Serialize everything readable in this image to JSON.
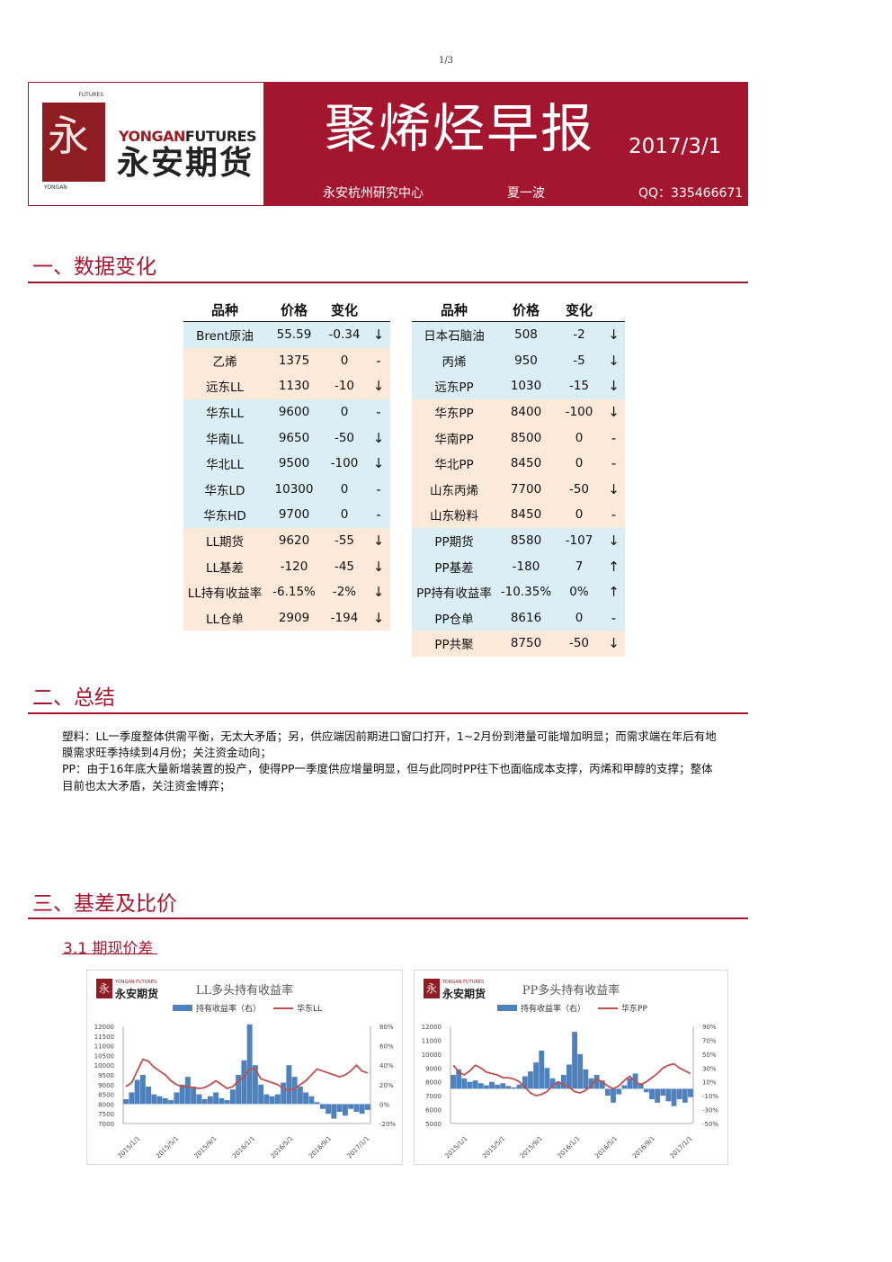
{
  "page_number": "1/3",
  "header": {
    "logo_en_a": "YONGAN",
    "logo_en_b": "FUTURES",
    "logo_cn": "永安期货",
    "logo_seal": "永",
    "logo_seal_top": "FUTURES",
    "logo_seal_bottom": "YONGAN",
    "title": "聚烯烃早报",
    "date": "2017/3/1",
    "org": "永安杭州研究中心",
    "author": "夏一波",
    "qq": "QQ：335466671"
  },
  "sections": {
    "s1": "一、数据变化",
    "s2": "二、总结",
    "s3": "三、基差及比价",
    "s3_1": "3.1 期现价差"
  },
  "table_headers": [
    "品种",
    "价格",
    "变化"
  ],
  "left_table": [
    {
      "name": "Brent原油",
      "price": "55.59",
      "change": "-0.34",
      "arrow": "↓",
      "bg": "blue"
    },
    {
      "name": "乙烯",
      "price": "1375",
      "change": "0",
      "arrow": "-",
      "bg": "orange"
    },
    {
      "name": "远东LL",
      "price": "1130",
      "change": "-10",
      "arrow": "↓",
      "bg": "orange"
    },
    {
      "name": "华东LL",
      "price": "9600",
      "change": "0",
      "arrow": "-",
      "bg": "blue"
    },
    {
      "name": "华南LL",
      "price": "9650",
      "change": "-50",
      "arrow": "↓",
      "bg": "blue"
    },
    {
      "name": "华北LL",
      "price": "9500",
      "change": "-100",
      "arrow": "↓",
      "bg": "blue"
    },
    {
      "name": "华东LD",
      "price": "10300",
      "change": "0",
      "arrow": "-",
      "bg": "blue"
    },
    {
      "name": "华东HD",
      "price": "9700",
      "change": "0",
      "arrow": "-",
      "bg": "blue"
    },
    {
      "name": "LL期货",
      "price": "9620",
      "change": "-55",
      "arrow": "↓",
      "bg": "orange"
    },
    {
      "name": "LL基差",
      "price": "-120",
      "change": "-45",
      "arrow": "↓",
      "bg": "orange"
    },
    {
      "name": "LL持有收益率",
      "price": "-6.15%",
      "change": "-2%",
      "arrow": "↓",
      "bg": "orange"
    },
    {
      "name": "LL仓单",
      "price": "2909",
      "change": "-194",
      "arrow": "↓",
      "bg": "orange"
    }
  ],
  "right_table": [
    {
      "name": "日本石脑油",
      "price": "508",
      "change": "-2",
      "arrow": "↓",
      "bg": "blue"
    },
    {
      "name": "丙烯",
      "price": "950",
      "change": "-5",
      "arrow": "↓",
      "bg": "blue"
    },
    {
      "name": "远东PP",
      "price": "1030",
      "change": "-15",
      "arrow": "↓",
      "bg": "blue"
    },
    {
      "name": "华东PP",
      "price": "8400",
      "change": "-100",
      "arrow": "↓",
      "bg": "orange"
    },
    {
      "name": "华南PP",
      "price": "8500",
      "change": "0",
      "arrow": "-",
      "bg": "orange"
    },
    {
      "name": "华北PP",
      "price": "8450",
      "change": "0",
      "arrow": "-",
      "bg": "orange"
    },
    {
      "name": "山东丙烯",
      "price": "7700",
      "change": "-50",
      "arrow": "↓",
      "bg": "orange"
    },
    {
      "name": "山东粉料",
      "price": "8450",
      "change": "0",
      "arrow": "-",
      "bg": "orange"
    },
    {
      "name": "PP期货",
      "price": "8580",
      "change": "-107",
      "arrow": "↓",
      "bg": "blue"
    },
    {
      "name": "PP基差",
      "price": "-180",
      "change": "7",
      "arrow": "↑",
      "bg": "blue"
    },
    {
      "name": "PP持有收益率",
      "price": "-10.35%",
      "change": "0%",
      "arrow": "↑",
      "bg": "blue"
    },
    {
      "name": "PP仓单",
      "price": "8616",
      "change": "0",
      "arrow": "-",
      "bg": "blue"
    },
    {
      "name": "PP共聚",
      "price": "8750",
      "change": "-50",
      "arrow": "↓",
      "bg": "orange"
    }
  ],
  "summary": {
    "p1": "塑料：LL一季度整体供需平衡，无太大矛盾；另，供应端因前期进口窗口打开，1~2月份到港量可能增加明显；而需求端在年后有地膜需求旺季持续到4月份；关注资金动向；",
    "p2": "PP：由于16年底大量新增装置的投产，使得PP一季度供应增量明显，但与此同时PP往下也面临成本支撑，丙烯和甲醇的支撑；整体目前也太大矛盾，关注资金博弈；"
  },
  "chart_logo": {
    "seal": "永",
    "en": "YONGAN FUTURES",
    "cn": "永安期货"
  },
  "colors": {
    "brand": "#a3162e",
    "bar": "#4f81bd",
    "line": "#c0504d",
    "blue_row": "#daeef3",
    "orange_row": "#fde9d9"
  },
  "chart_data": [
    {
      "type": "bar+line",
      "title": "LL多头持有收益率",
      "legend": [
        "持有收益率（右）",
        "华东LL"
      ],
      "x_ticks": [
        "2015/1/1",
        "2015/5/1",
        "2015/9/1",
        "2016/1/1",
        "2016/5/1",
        "2016/9/1",
        "2017/1/1"
      ],
      "y_left": {
        "ticks": [
          "12000",
          "11500",
          "11000",
          "10500",
          "10000",
          "9500",
          "9000",
          "8500",
          "8000",
          "7500",
          "7000"
        ],
        "min": 7000,
        "max": 12000
      },
      "y_right": {
        "ticks": [
          "80%",
          "60%",
          "40%",
          "20%",
          "0%",
          "-20%"
        ],
        "min": -20,
        "max": 80
      },
      "series": [
        {
          "name": "华东LL",
          "kind": "line",
          "values": [
            8900,
            9100,
            9700,
            10300,
            10200,
            9900,
            9700,
            9500,
            9200,
            9000,
            8900,
            8900,
            8850,
            8800,
            8850,
            9000,
            9200,
            9000,
            8800,
            8900,
            9200,
            9400,
            9800,
            9800,
            9300,
            9200,
            9100,
            9000,
            8800,
            8700,
            8800,
            9000,
            9200,
            9500,
            9800,
            9700,
            9600,
            9500,
            9400,
            9500,
            9700,
            10000,
            9700,
            9600
          ]
        },
        {
          "name": "持有收益率（右）",
          "kind": "bar",
          "values": [
            5,
            12,
            25,
            30,
            18,
            10,
            8,
            6,
            4,
            12,
            20,
            28,
            18,
            10,
            5,
            8,
            12,
            6,
            4,
            15,
            30,
            45,
            82,
            40,
            20,
            10,
            8,
            10,
            22,
            40,
            28,
            18,
            12,
            8,
            2,
            -5,
            -10,
            -15,
            -8,
            -12,
            -5,
            -8,
            -10,
            -6
          ]
        }
      ]
    },
    {
      "type": "bar+line",
      "title": "PP多头持有收益率",
      "legend": [
        "持有收益率（右）",
        "华东PP"
      ],
      "x_ticks": [
        "2015/1/1",
        "2015/5/1",
        "2015/9/1",
        "2016/1/1",
        "2016/5/1",
        "2016/9/1",
        "2017/1/1"
      ],
      "y_left": {
        "ticks": [
          "12000",
          "11000",
          "10000",
          "9000",
          "8000",
          "7000",
          "6000",
          "5000"
        ],
        "min": 5000,
        "max": 12000
      },
      "y_right": {
        "ticks": [
          "90%",
          "70%",
          "50%",
          "30%",
          "10%",
          "-10%",
          "-30%",
          "-50%"
        ],
        "min": -50,
        "max": 90
      },
      "series": [
        {
          "name": "华东PP",
          "kind": "line",
          "values": [
            9200,
            8700,
            8500,
            8800,
            9200,
            9000,
            8700,
            8600,
            8500,
            8300,
            8300,
            8200,
            8000,
            7600,
            7200,
            7000,
            7100,
            7300,
            7700,
            8000,
            7800,
            7600,
            7300,
            7200,
            7400,
            7700,
            8200,
            8000,
            7700,
            7500,
            7700,
            8100,
            8400,
            8000,
            7800,
            8000,
            8300,
            8600,
            9000,
            9200,
            9300,
            9000,
            8800,
            8600
          ]
        },
        {
          "name": "持有收益率（右）",
          "kind": "bar",
          "values": [
            20,
            28,
            15,
            10,
            12,
            8,
            5,
            10,
            6,
            8,
            4,
            2,
            6,
            18,
            25,
            38,
            55,
            30,
            15,
            10,
            20,
            35,
            82,
            50,
            28,
            15,
            20,
            12,
            -10,
            -20,
            -8,
            5,
            15,
            22,
            8,
            -5,
            -15,
            -20,
            -10,
            -18,
            -25,
            -15,
            -20,
            -12
          ]
        }
      ]
    }
  ]
}
